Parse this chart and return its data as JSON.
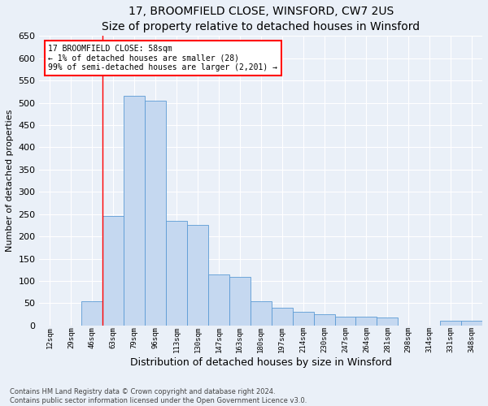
{
  "title1": "17, BROOMFIELD CLOSE, WINSFORD, CW7 2US",
  "title2": "Size of property relative to detached houses in Winsford",
  "xlabel": "Distribution of detached houses by size in Winsford",
  "ylabel": "Number of detached properties",
  "bin_labels": [
    "12sqm",
    "29sqm",
    "46sqm",
    "63sqm",
    "79sqm",
    "96sqm",
    "113sqm",
    "130sqm",
    "147sqm",
    "163sqm",
    "180sqm",
    "197sqm",
    "214sqm",
    "230sqm",
    "247sqm",
    "264sqm",
    "281sqm",
    "298sqm",
    "314sqm",
    "331sqm",
    "348sqm"
  ],
  "bar_values": [
    0,
    0,
    55,
    245,
    515,
    505,
    235,
    225,
    115,
    110,
    55,
    40,
    30,
    25,
    20,
    20,
    18,
    0,
    0,
    10,
    10
  ],
  "bar_color": "#C5D8F0",
  "bar_edge_color": "#5B9BD5",
  "red_line_x": 3.5,
  "annotation_text": "17 BROOMFIELD CLOSE: 58sqm\n← 1% of detached houses are smaller (28)\n99% of semi-detached houses are larger (2,201) →",
  "annotation_box_color": "white",
  "annotation_box_edge": "red",
  "ylim": [
    0,
    650
  ],
  "yticks": [
    0,
    50,
    100,
    150,
    200,
    250,
    300,
    350,
    400,
    450,
    500,
    550,
    600,
    650
  ],
  "footer1": "Contains HM Land Registry data © Crown copyright and database right 2024.",
  "footer2": "Contains public sector information licensed under the Open Government Licence v3.0.",
  "bg_color": "#EAF0F8",
  "plot_bg_color": "#EAF0F8",
  "grid_color": "white",
  "title1_fontsize": 10,
  "title2_fontsize": 9,
  "ylabel_fontsize": 8,
  "xlabel_fontsize": 9
}
